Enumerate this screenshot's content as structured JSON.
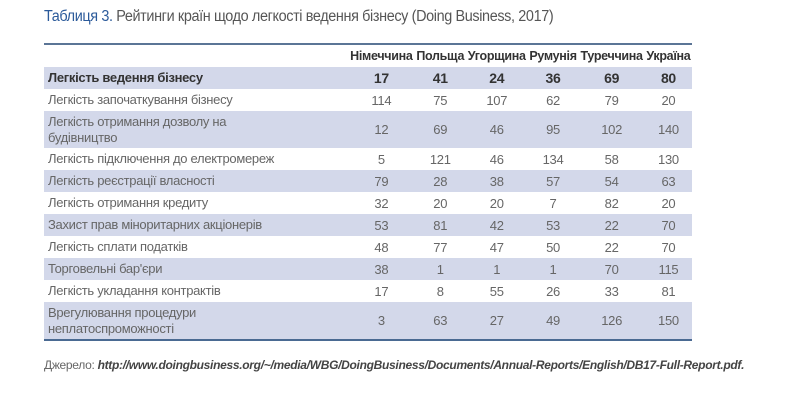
{
  "title": {
    "label": "Таблиця 3.",
    "text": " Рейтинги країн щодо легкості ведення бізнесу (Doing Business, 2017)"
  },
  "columns": [
    "Німеччина",
    "Польща",
    "Угорщина",
    "Румунія",
    "Туреччина",
    "Україна"
  ],
  "rows": [
    {
      "name": "Легкість ведення бізнесу",
      "values": [
        "17",
        "41",
        "24",
        "36",
        "69",
        "80"
      ]
    },
    {
      "name": "Легкість започаткування бізнесу",
      "values": [
        "114",
        "75",
        "107",
        "62",
        "79",
        "20"
      ]
    },
    {
      "name": "Легкість отримання дозволу на будівництво",
      "values": [
        "12",
        "69",
        "46",
        "95",
        "102",
        "140"
      ]
    },
    {
      "name": "Легкість підключення до електромереж",
      "values": [
        "5",
        "121",
        "46",
        "134",
        "58",
        "130"
      ]
    },
    {
      "name": "Легкість реєстрації власності",
      "values": [
        "79",
        "28",
        "38",
        "57",
        "54",
        "63"
      ]
    },
    {
      "name": "Легкість отримання кредиту",
      "values": [
        "32",
        "20",
        "20",
        "7",
        "82",
        "20"
      ]
    },
    {
      "name": "Захист прав міноритарних акціонерів",
      "values": [
        "53",
        "81",
        "42",
        "53",
        "22",
        "70"
      ]
    },
    {
      "name": "Легкість сплати податків",
      "values": [
        "48",
        "77",
        "47",
        "50",
        "22",
        "70"
      ]
    },
    {
      "name": "Торговельні бар'єри",
      "values": [
        "38",
        "1",
        "1",
        "1",
        "70",
        "115"
      ]
    },
    {
      "name": "Легкість укладання контрактів",
      "values": [
        "17",
        "8",
        "55",
        "26",
        "33",
        "81"
      ]
    },
    {
      "name": "Врегулювання процедури неплатоспроможності",
      "values": [
        "3",
        "63",
        "27",
        "49",
        "126",
        "150"
      ]
    }
  ],
  "source": {
    "label": "Джерело: ",
    "url": "http://www.doingbusiness.org/~/media/WBG/DoingBusiness/Documents/Annual-Reports/English/DB17-Full-Report.pdf."
  }
}
